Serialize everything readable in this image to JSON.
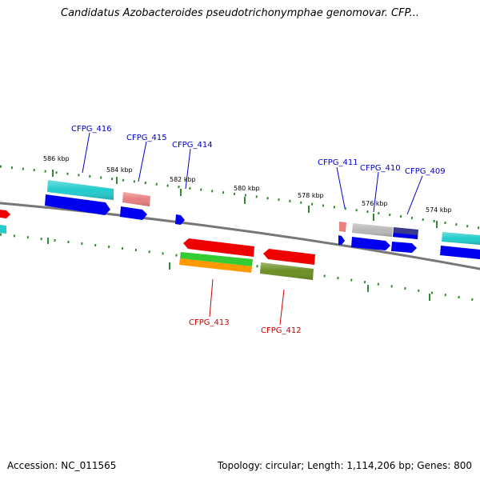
{
  "title": "Candidatus Azobacteroides pseudotrichonymphae genomovar. CFP...",
  "footer": {
    "accession": "Accession: NC_011565",
    "topology": "Topology: circular; Length: 1,114,206 bp; Genes: 800"
  },
  "colors": {
    "backbone": "#808080",
    "tick": "#2e8b2e",
    "label_forward": "#0000cc",
    "label_reverse": "#cc0000",
    "blue": "#0000ee",
    "cyan": "#22cccc",
    "pink": "#e88080",
    "red": "#ee0000",
    "green": "#33cc33",
    "orange": "#ff9900",
    "olive": "#6b8e23",
    "gray": "#b8b8b8",
    "navy": "#3a3a8a"
  },
  "kbp_labels": [
    "586 kbp",
    "584 kbp",
    "582 kbp",
    "580 kbp",
    "578 kbp",
    "576 kbp",
    "574 kbp"
  ],
  "gene_labels": {
    "forward": [
      "CFPG_416",
      "CFPG_415",
      "CFPG_414",
      "CFPG_411",
      "CFPG_410",
      "CFPG_409"
    ],
    "reverse": [
      "CFPG_413",
      "CFPG_412"
    ]
  }
}
